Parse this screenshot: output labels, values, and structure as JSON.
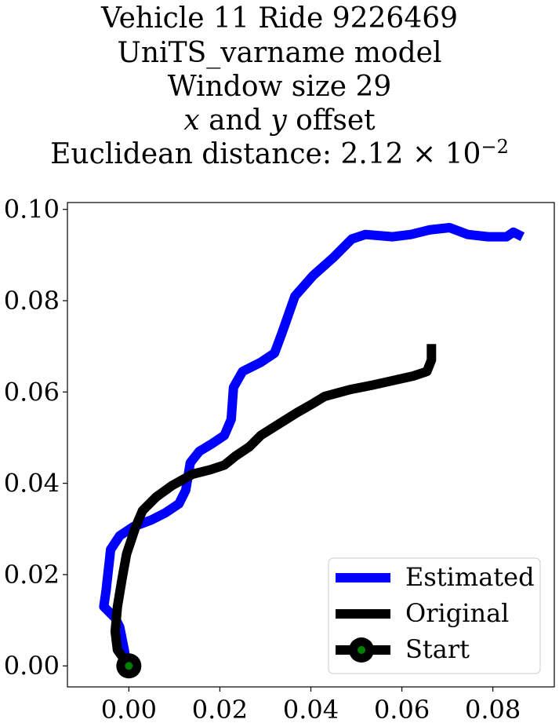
{
  "title": {
    "line1": "Vehicle 11 Ride 9226469",
    "line2": "UniTS_varname model",
    "line3": "Window size 29",
    "line4_x": "x",
    "line4_and": "and",
    "line4_y": "y",
    "line4_rest": "offset",
    "line5_prefix": "Euclidean distance: 2.12 × 10",
    "line5_exp": "−2"
  },
  "legend": {
    "estimated": "Estimated",
    "original": "Original",
    "start": "Start"
  },
  "colors": {
    "estimated": "#0000ff",
    "original": "#000000",
    "start_fill": "#008000"
  },
  "chart_data": {
    "type": "line",
    "xlim": [
      -0.0135,
      0.0935
    ],
    "ylim": [
      -0.0046,
      0.1015
    ],
    "xticks": [
      "0.00",
      "0.02",
      "0.04",
      "0.06",
      "0.08"
    ],
    "yticks": [
      "0.00",
      "0.02",
      "0.04",
      "0.06",
      "0.08",
      "0.10"
    ],
    "legend_position": "lower right",
    "grid": false,
    "series": [
      {
        "name": "Estimated",
        "points": [
          [
            -0.0005,
            0.0005
          ],
          [
            -0.001,
            0.0035
          ],
          [
            -0.0015,
            0.006
          ],
          [
            -0.002,
            0.0085
          ],
          [
            -0.003,
            0.0105
          ],
          [
            -0.0055,
            0.013
          ],
          [
            -0.005,
            0.0165
          ],
          [
            -0.0045,
            0.021
          ],
          [
            -0.004,
            0.0255
          ],
          [
            -0.002,
            0.0285
          ],
          [
            0.001,
            0.0305
          ],
          [
            0.005,
            0.032
          ],
          [
            0.008,
            0.0335
          ],
          [
            0.011,
            0.0355
          ],
          [
            0.0125,
            0.0385
          ],
          [
            0.0135,
            0.0445
          ],
          [
            0.0155,
            0.047
          ],
          [
            0.018,
            0.0485
          ],
          [
            0.021,
            0.0505
          ],
          [
            0.0225,
            0.054
          ],
          [
            0.023,
            0.061
          ],
          [
            0.025,
            0.0645
          ],
          [
            0.029,
            0.0665
          ],
          [
            0.032,
            0.0685
          ],
          [
            0.0335,
            0.0725
          ],
          [
            0.0365,
            0.081
          ],
          [
            0.0405,
            0.0855
          ],
          [
            0.045,
            0.0895
          ],
          [
            0.049,
            0.0935
          ],
          [
            0.052,
            0.0945
          ],
          [
            0.058,
            0.094
          ],
          [
            0.062,
            0.0945
          ],
          [
            0.066,
            0.0955
          ],
          [
            0.0705,
            0.096
          ],
          [
            0.0745,
            0.0945
          ],
          [
            0.079,
            0.094
          ],
          [
            0.083,
            0.094
          ],
          [
            0.0845,
            0.095
          ],
          [
            0.0865,
            0.094
          ]
        ]
      },
      {
        "name": "Original",
        "points": [
          [
            0.0,
            0.0
          ],
          [
            -0.0025,
            0.0035
          ],
          [
            -0.003,
            0.0075
          ],
          [
            -0.0025,
            0.013
          ],
          [
            -0.0015,
            0.019
          ],
          [
            -0.0005,
            0.0245
          ],
          [
            0.0015,
            0.0305
          ],
          [
            0.003,
            0.034
          ],
          [
            0.006,
            0.037
          ],
          [
            0.0095,
            0.0395
          ],
          [
            0.014,
            0.042
          ],
          [
            0.018,
            0.043
          ],
          [
            0.021,
            0.044
          ],
          [
            0.0235,
            0.046
          ],
          [
            0.0265,
            0.048
          ],
          [
            0.029,
            0.0505
          ],
          [
            0.033,
            0.053
          ],
          [
            0.037,
            0.0555
          ],
          [
            0.0405,
            0.0575
          ],
          [
            0.043,
            0.059
          ],
          [
            0.0485,
            0.0605
          ],
          [
            0.0535,
            0.0615
          ],
          [
            0.058,
            0.0625
          ],
          [
            0.0625,
            0.0635
          ],
          [
            0.0655,
            0.0645
          ],
          [
            0.0665,
            0.067
          ],
          [
            0.0665,
            0.0705
          ]
        ]
      }
    ],
    "start_point": [
      0.0,
      0.0
    ]
  }
}
